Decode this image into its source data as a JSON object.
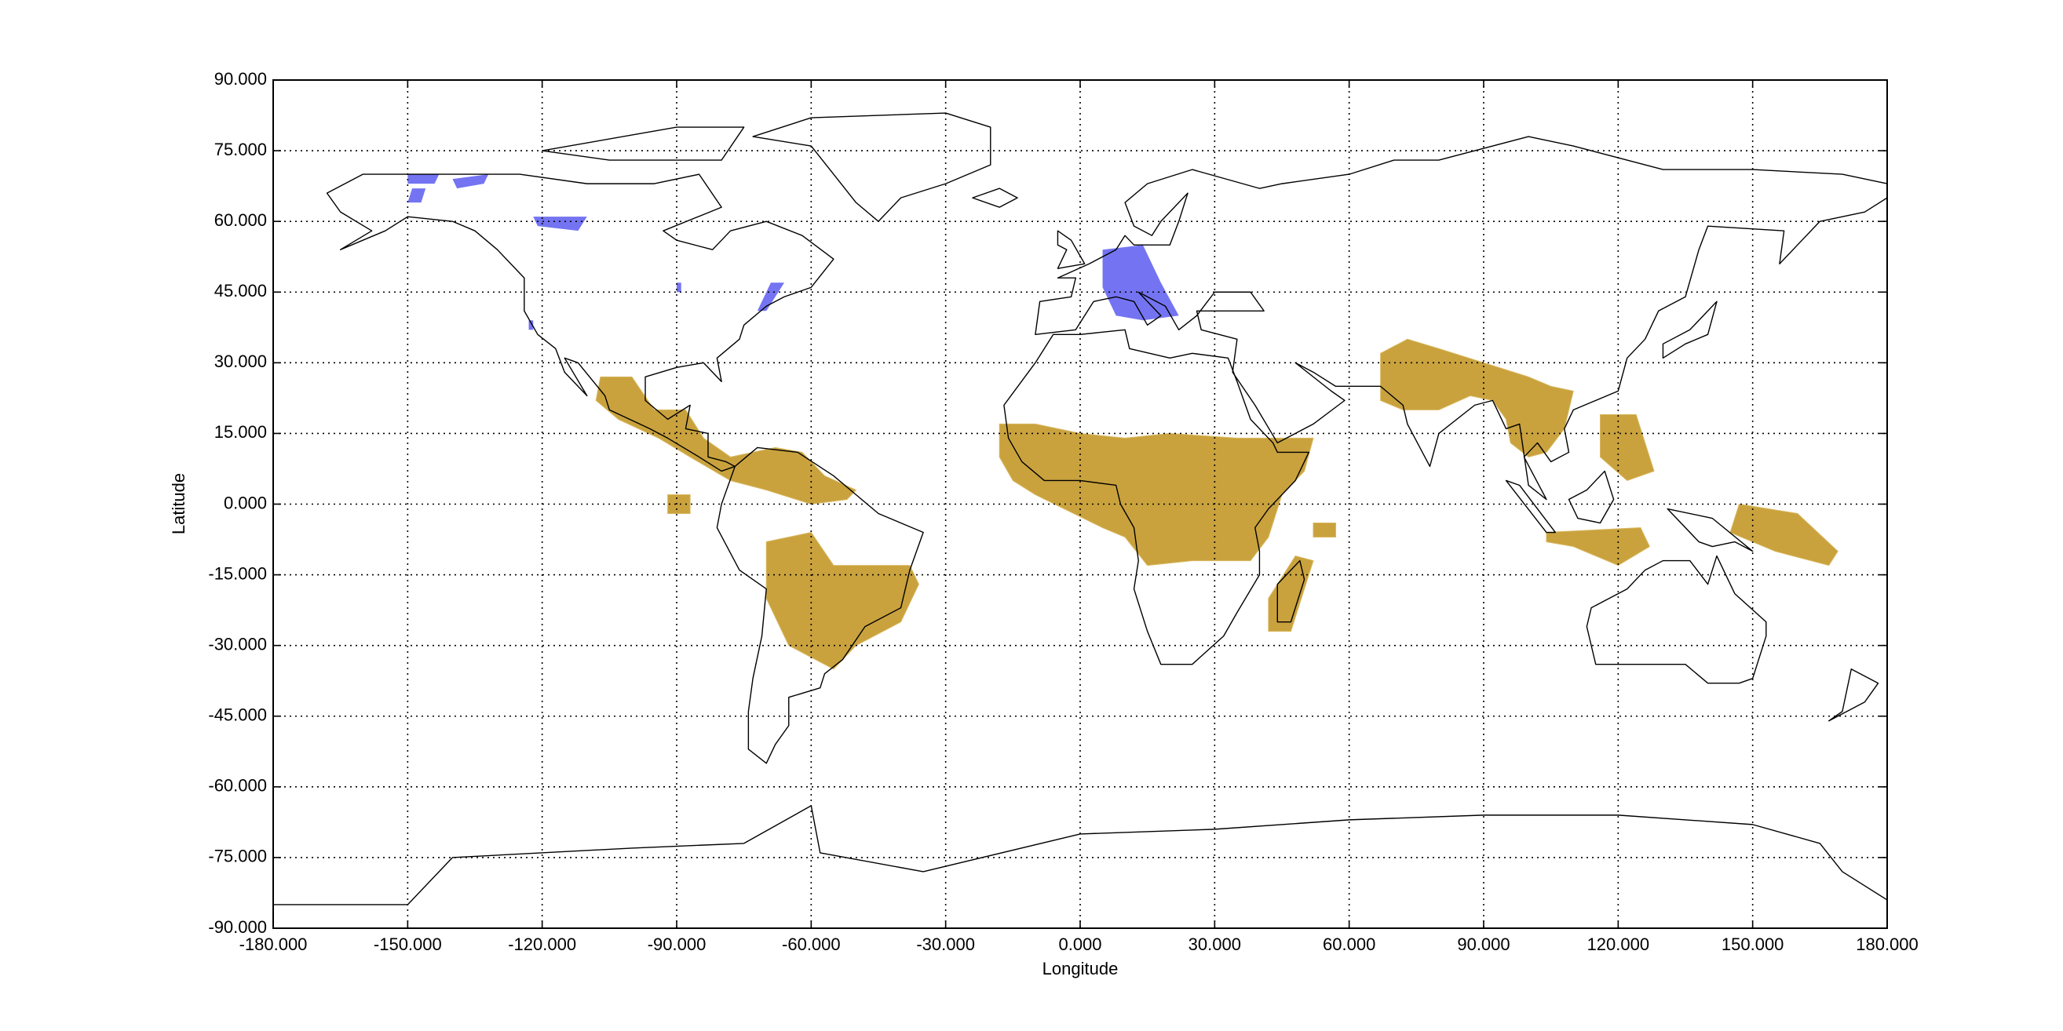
{
  "chart_data": {
    "type": "map",
    "x_label": "Longitude",
    "y_label": "Latitude",
    "xlim": [
      -180,
      180
    ],
    "ylim": [
      -90,
      90
    ],
    "grid": true,
    "xticks": [
      {
        "value": -180,
        "label": "-180.000"
      },
      {
        "value": -150,
        "label": "-150.000"
      },
      {
        "value": -120,
        "label": "-120.000"
      },
      {
        "value": -90,
        "label": "-90.000"
      },
      {
        "value": -60,
        "label": "-60.000"
      },
      {
        "value": -30,
        "label": "-30.000"
      },
      {
        "value": 0,
        "label": "0.000"
      },
      {
        "value": 30,
        "label": "30.000"
      },
      {
        "value": 60,
        "label": "60.000"
      },
      {
        "value": 90,
        "label": "90.000"
      },
      {
        "value": 120,
        "label": "120.000"
      },
      {
        "value": 150,
        "label": "150.000"
      },
      {
        "value": 180,
        "label": "180.000"
      }
    ],
    "yticks": [
      {
        "value": -90,
        "label": "-90.000"
      },
      {
        "value": -75,
        "label": "-75.000"
      },
      {
        "value": -60,
        "label": "-60.000"
      },
      {
        "value": -45,
        "label": "-45.000"
      },
      {
        "value": -30,
        "label": "-30.000"
      },
      {
        "value": -15,
        "label": "-15.000"
      },
      {
        "value": 0,
        "label": "0.000"
      },
      {
        "value": 15,
        "label": "15.000"
      },
      {
        "value": 30,
        "label": "30.000"
      },
      {
        "value": 45,
        "label": "45.000"
      },
      {
        "value": 60,
        "label": "60.000"
      },
      {
        "value": 75,
        "label": "75.000"
      },
      {
        "value": 90,
        "label": "90.000"
      }
    ]
  }
}
